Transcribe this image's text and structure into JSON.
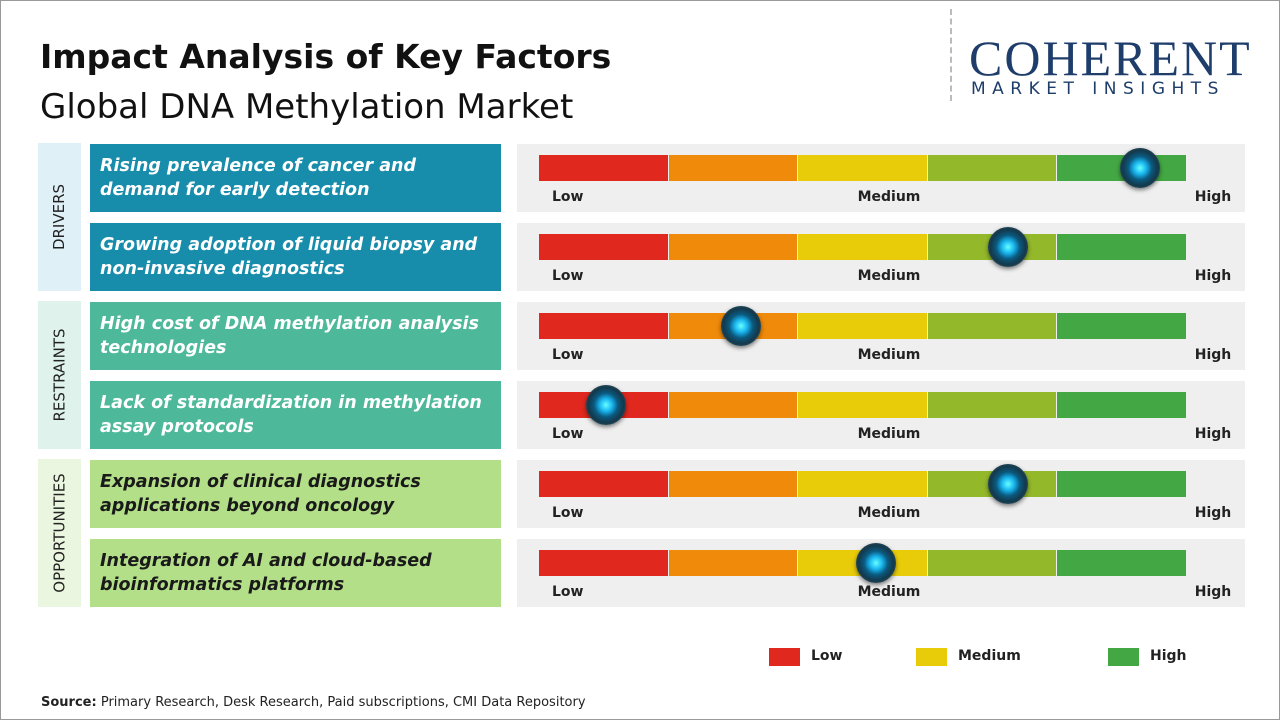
{
  "header": {
    "title": "Impact Analysis of Key Factors",
    "subtitle": "Global DNA Methylation Market"
  },
  "logo": {
    "name": "COHERENT",
    "tagline": "MARKET INSIGHTS"
  },
  "scale": {
    "labels": [
      "Low",
      "Medium",
      "High"
    ],
    "range": [
      0,
      5
    ],
    "colors": [
      "#e0281e",
      "#ef8a0a",
      "#e8cc0a",
      "#93b82a",
      "#43a843"
    ]
  },
  "groups": [
    {
      "name": "DRIVERS",
      "color": "#dff0f7",
      "box_color": "#178cab",
      "text_color": "#ffffff",
      "factors": [
        {
          "text": "Rising prevalence of cancer and demand for early detection",
          "impact": 4.64
        },
        {
          "text": "Growing adoption of liquid biopsy and non-invasive diagnostics",
          "impact": 3.62
        }
      ]
    },
    {
      "name": "RESTRAINTS",
      "color": "#dff2ec",
      "box_color": "#4db89a",
      "text_color": "#ffffff",
      "factors": [
        {
          "text": "High cost of DNA methylation analysis technologies",
          "impact": 1.56
        },
        {
          "text": "Lack of standardization in methylation assay protocols",
          "impact": 0.52
        }
      ]
    },
    {
      "name": "OPPORTUNITIES",
      "color": "#eaf6df",
      "box_color": "#b3df88",
      "text_color": "#1a1a1a",
      "factors": [
        {
          "text": "Expansion of clinical diagnostics applications beyond oncology",
          "impact": 3.62
        },
        {
          "text": "Integration of AI and cloud-based bioinformatics platforms",
          "impact": 2.6
        }
      ]
    }
  ],
  "legend": [
    {
      "label": "Low",
      "color": "#e0281e"
    },
    {
      "label": "Medium",
      "color": "#e8cc0a"
    },
    {
      "label": "High",
      "color": "#43a843"
    }
  ],
  "source": {
    "label": "Source:",
    "text": "Primary Research, Desk Research, Paid subscriptions, CMI Data Repository"
  }
}
